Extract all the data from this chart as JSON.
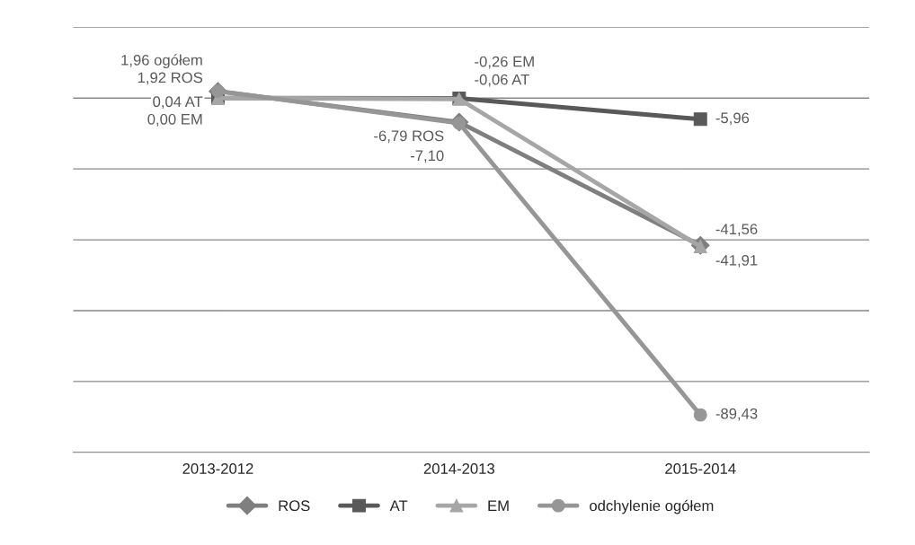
{
  "chart_data": {
    "type": "line",
    "categories": [
      "2013-2012",
      "2014-2013",
      "2015-2014"
    ],
    "series": [
      {
        "name": "ROS",
        "color": "#7f7f7f",
        "marker": "diamond",
        "values": [
          1.92,
          -6.79,
          -41.56
        ],
        "value_labels": [
          "1,92 ROS",
          "-6,79 ROS",
          "-41,56"
        ]
      },
      {
        "name": "AT",
        "color": "#595959",
        "marker": "square",
        "values": [
          0.04,
          -0.06,
          -5.96
        ],
        "value_labels": [
          "0,04 AT",
          "-0,06 AT",
          "-5,96"
        ]
      },
      {
        "name": "EM",
        "color": "#a6a6a6",
        "marker": "triangle",
        "values": [
          0.0,
          -0.26,
          -41.91
        ],
        "value_labels": [
          "0,00 EM",
          "-0,26 EM",
          "-41,91"
        ]
      },
      {
        "name": "odchylenie ogółem",
        "color": "#969696",
        "marker": "circle",
        "values": [
          1.96,
          -7.1,
          -89.43
        ],
        "value_labels": [
          "1,96 ogółem",
          "-7,10",
          "-89,43"
        ]
      }
    ],
    "ylim": [
      -100,
      20
    ],
    "yticks": [
      {
        "value": -100,
        "label": null
      },
      {
        "value": -80,
        "label": null
      },
      {
        "value": -60,
        "label": null
      },
      {
        "value": -40,
        "label": null
      },
      {
        "value": -20,
        "label": null
      },
      {
        "value": 0,
        "label": null
      },
      {
        "value": 20,
        "label": null
      }
    ],
    "tick_labels": "x",
    "grid": "y",
    "legend": "bottom",
    "line_style": "solid"
  }
}
